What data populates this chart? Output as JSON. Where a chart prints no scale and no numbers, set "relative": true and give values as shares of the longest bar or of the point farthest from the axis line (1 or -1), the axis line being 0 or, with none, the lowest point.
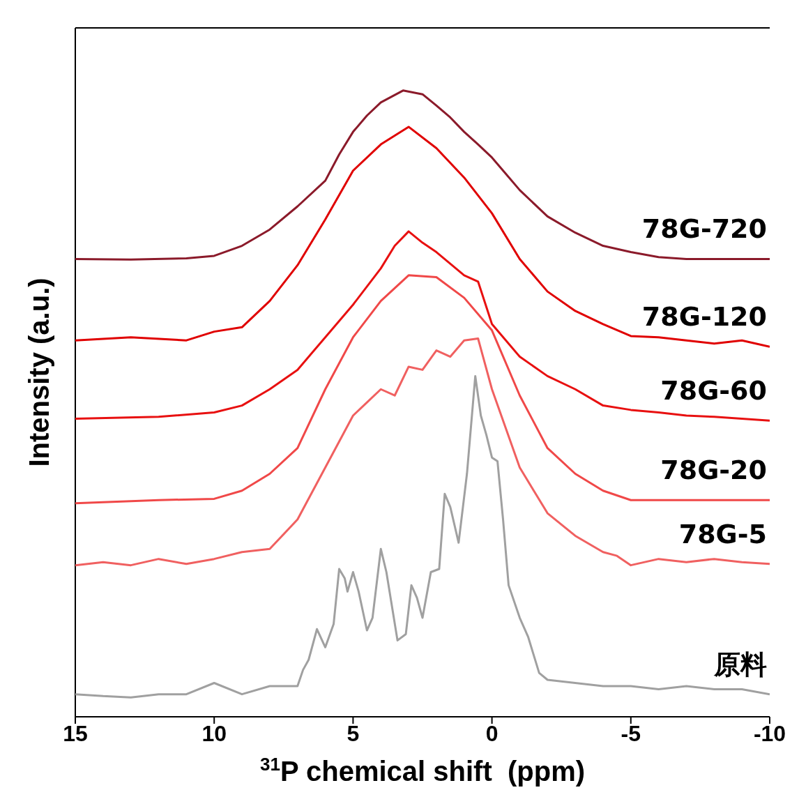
{
  "chart_data": {
    "type": "line",
    "relative": true,
    "xlabel": "$^{31}$P chemical shift  (ppm)",
    "ylabel": "Intensity (a.u.)",
    "xlim": [
      15,
      -10
    ],
    "xticks": [
      15,
      10,
      5,
      0,
      -5,
      -10
    ],
    "marker": "none",
    "series": [
      {
        "name": "78G-720",
        "color": "#8b1a2a",
        "x": [
          15,
          13,
          11,
          10,
          9,
          8,
          7,
          6,
          5.5,
          5,
          4.5,
          4,
          3.2,
          2.5,
          2,
          1.5,
          1,
          0.5,
          0,
          -1,
          -2,
          -3,
          -4,
          -5,
          -6,
          -7,
          -10
        ],
        "values": [
          0.731,
          0.73,
          0.732,
          0.736,
          0.752,
          0.778,
          0.815,
          0.856,
          0.898,
          0.934,
          0.96,
          0.981,
          1.0,
          0.994,
          0.976,
          0.957,
          0.934,
          0.914,
          0.893,
          0.841,
          0.799,
          0.773,
          0.752,
          0.742,
          0.734,
          0.731,
          0.731
        ]
      },
      {
        "name": "78G-120",
        "color": "#e00000",
        "x": [
          15,
          13,
          11,
          10,
          9,
          8,
          7,
          6,
          5,
          4,
          3,
          2,
          1,
          0,
          -1,
          -2,
          -3,
          -4,
          -5,
          -6,
          -7,
          -8,
          -9,
          -10
        ],
        "values": [
          0.601,
          0.606,
          0.601,
          0.615,
          0.622,
          0.664,
          0.721,
          0.794,
          0.872,
          0.914,
          0.942,
          0.908,
          0.861,
          0.804,
          0.731,
          0.679,
          0.648,
          0.627,
          0.608,
          0.606,
          0.601,
          0.596,
          0.601,
          0.591
        ]
      },
      {
        "name": "78G-60",
        "color": "#e81010",
        "x": [
          15,
          12,
          10,
          9,
          8,
          7,
          6,
          5,
          4,
          3.5,
          3,
          2.5,
          2,
          1,
          0.5,
          0,
          -1,
          -2,
          -3,
          -4,
          -5,
          -6,
          -7,
          -8,
          -9,
          -10
        ],
        "values": [
          0.476,
          0.479,
          0.486,
          0.497,
          0.523,
          0.554,
          0.606,
          0.658,
          0.716,
          0.752,
          0.775,
          0.757,
          0.742,
          0.705,
          0.695,
          0.627,
          0.575,
          0.544,
          0.523,
          0.497,
          0.49,
          0.486,
          0.481,
          0.479,
          0.476,
          0.473
        ]
      },
      {
        "name": "78G-20",
        "color": "#f04848",
        "x": [
          15,
          12,
          10,
          9,
          8,
          7,
          6,
          5,
          4,
          3,
          2,
          1,
          0,
          -1,
          -2,
          -3,
          -4,
          -5,
          -6,
          -7,
          -10
        ],
        "values": [
          0.341,
          0.346,
          0.348,
          0.361,
          0.388,
          0.429,
          0.523,
          0.606,
          0.664,
          0.705,
          0.702,
          0.669,
          0.617,
          0.513,
          0.429,
          0.388,
          0.361,
          0.346,
          0.346,
          0.346,
          0.346
        ]
      },
      {
        "name": "78G-5",
        "color": "#f06060",
        "x": [
          15,
          14,
          13,
          12,
          11,
          10,
          9,
          8,
          7,
          6,
          5,
          4.5,
          4,
          3.5,
          3,
          2.5,
          2,
          1.5,
          1,
          0.5,
          0,
          -1,
          -2,
          -3,
          -4,
          -4.5,
          -5,
          -6,
          -7,
          -8,
          -9,
          -10
        ],
        "values": [
          0.242,
          0.247,
          0.242,
          0.252,
          0.244,
          0.252,
          0.263,
          0.268,
          0.315,
          0.398,
          0.481,
          0.502,
          0.523,
          0.513,
          0.559,
          0.554,
          0.585,
          0.575,
          0.601,
          0.604,
          0.523,
          0.398,
          0.325,
          0.289,
          0.263,
          0.257,
          0.242,
          0.252,
          0.247,
          0.252,
          0.247,
          0.244
        ]
      },
      {
        "name": "原料",
        "color": "#a0a0a0",
        "x": [
          15,
          14,
          13,
          12,
          11,
          10,
          9,
          8,
          7,
          6.8,
          6.6,
          6.3,
          6.0,
          5.7,
          5.5,
          5.3,
          5.2,
          5.0,
          4.8,
          4.5,
          4.3,
          4.0,
          3.8,
          3.4,
          3.1,
          2.9,
          2.7,
          2.5,
          2.2,
          1.9,
          1.7,
          1.5,
          1.2,
          0.9,
          0.6,
          0.4,
          0.2,
          0,
          -0.2,
          -0.4,
          -0.6,
          -1,
          -1.3,
          -1.7,
          -2,
          -3,
          -4,
          -5,
          -6,
          -7,
          -8,
          -9,
          -10
        ],
        "values": [
          0.036,
          0.033,
          0.031,
          0.036,
          0.036,
          0.054,
          0.036,
          0.049,
          0.049,
          0.075,
          0.091,
          0.14,
          0.111,
          0.148,
          0.236,
          0.221,
          0.2,
          0.231,
          0.2,
          0.138,
          0.158,
          0.268,
          0.231,
          0.122,
          0.132,
          0.21,
          0.19,
          0.158,
          0.231,
          0.236,
          0.356,
          0.335,
          0.278,
          0.388,
          0.544,
          0.481,
          0.45,
          0.414,
          0.408,
          0.315,
          0.21,
          0.158,
          0.128,
          0.07,
          0.059,
          0.054,
          0.049,
          0.049,
          0.044,
          0.049,
          0.044,
          0.044,
          0.036
        ]
      }
    ]
  }
}
